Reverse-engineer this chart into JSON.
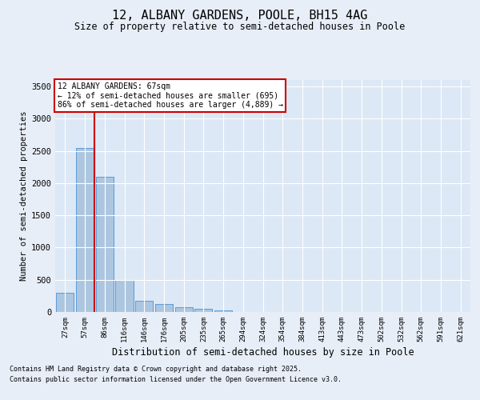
{
  "title1": "12, ALBANY GARDENS, POOLE, BH15 4AG",
  "title2": "Size of property relative to semi-detached houses in Poole",
  "xlabel": "Distribution of semi-detached houses by size in Poole",
  "ylabel": "Number of semi-detached properties",
  "bin_labels": [
    "27sqm",
    "57sqm",
    "86sqm",
    "116sqm",
    "146sqm",
    "176sqm",
    "205sqm",
    "235sqm",
    "265sqm",
    "294sqm",
    "324sqm",
    "354sqm",
    "384sqm",
    "413sqm",
    "443sqm",
    "473sqm",
    "502sqm",
    "532sqm",
    "562sqm",
    "591sqm",
    "621sqm"
  ],
  "bar_values": [
    300,
    2550,
    2100,
    500,
    175,
    125,
    75,
    50,
    20,
    5,
    3,
    2,
    1,
    1,
    0,
    0,
    0,
    0,
    0,
    0,
    0
  ],
  "bar_color": "#adc6e0",
  "bar_edge_color": "#5b9bd5",
  "ylim": [
    0,
    3600
  ],
  "yticks": [
    0,
    500,
    1000,
    1500,
    2000,
    2500,
    3000,
    3500
  ],
  "property_bin_index": 1,
  "property_label": "12 ALBANY GARDENS: 67sqm",
  "annotation_line1": "← 12% of semi-detached houses are smaller (695)",
  "annotation_line2": "86% of semi-detached houses are larger (4,889) →",
  "annotation_color": "#cc0000",
  "bg_color": "#dce8f5",
  "grid_color": "#ffffff",
  "fig_bg_color": "#e8eef8",
  "footnote1": "Contains HM Land Registry data © Crown copyright and database right 2025.",
  "footnote2": "Contains public sector information licensed under the Open Government Licence v3.0."
}
